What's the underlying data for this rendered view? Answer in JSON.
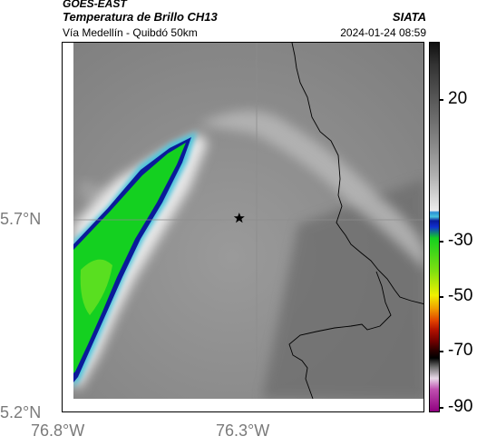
{
  "header": {
    "source": "GOES-EAST",
    "product": "Temperatura de Brillo CH13",
    "organization": "SIATA",
    "subtitle": "Vía Medellín - Quibdó 50km",
    "datetime": "2024-01-24 08:59"
  },
  "map": {
    "lat_labels": [
      "5.7°N",
      "5.2°N"
    ],
    "lon_labels": [
      "76.8°W",
      "76.3°W"
    ],
    "marker": "star-marker"
  },
  "colorbar": {
    "labels": [
      "20",
      "-30",
      "-50",
      "-70",
      "-90"
    ],
    "colors": {
      "cold_core": "#14d020",
      "blue_edge": "#0a1a9a",
      "cyan": "#46c3dc",
      "warm_gray": "#7a7a7a"
    }
  }
}
